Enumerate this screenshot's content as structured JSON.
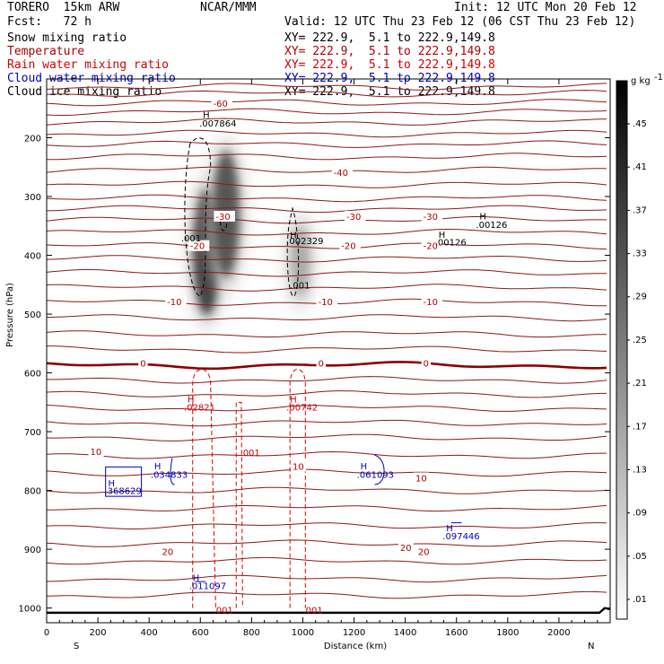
{
  "header": {
    "model": "TORERO  15km ARW",
    "center": "NCAR/MMM",
    "init": "Init: 12 UTC Mon 20 Feb 12",
    "fcst": "Fcst:   72 h",
    "valid": "Valid: 12 UTC Thu 23 Feb 12 (06 CST Thu 23 Feb 12)"
  },
  "legend": [
    {
      "name": "Snow mixing ratio",
      "xy": "XY= 222.9,  5.1 to 222.9,149.8",
      "color": "#000000"
    },
    {
      "name": "Temperature",
      "xy": "XY= 222.9,  5.1 to 222.9,149.8",
      "color": "#b00000"
    },
    {
      "name": "Rain water mixing ratio",
      "xy": "XY= 222.9,  5.1 to 222.9,149.8",
      "color": "#d00000"
    },
    {
      "name": "Cloud water mixing ratio",
      "xy": "XY= 222.9,  5.1 to 222.9,149.8",
      "color": "#0000c0"
    },
    {
      "name": "Cloud ice mixing ratio",
      "xy": "XY= 222.9,  5.1 to 222.9,149.8",
      "color": "#000000"
    }
  ],
  "chart_data": {
    "type": "cross-section contour",
    "xlabel": "Distance (km)",
    "ylabel": "Pressure (hPa)",
    "x_ticks": [
      0,
      200,
      400,
      600,
      800,
      1000,
      1200,
      1400,
      1600,
      1800,
      2000
    ],
    "xlim": [
      0,
      2200
    ],
    "y_ticks": [
      200,
      300,
      400,
      500,
      600,
      700,
      800,
      900,
      1000
    ],
    "ylim": [
      1025,
      100
    ],
    "x_ends": {
      "left": "S",
      "right": "N"
    },
    "colorbar": {
      "unit": "g kg",
      "unit_exp": "-1",
      "labels": [
        ".45",
        ".41",
        ".37",
        ".33",
        ".29",
        ".25",
        ".21",
        ".17",
        ".13",
        ".09",
        ".05",
        ".01"
      ]
    },
    "temperature_isotherms": [
      {
        "value": -60,
        "label": "-60",
        "label_x": 650,
        "label_p": 143
      },
      {
        "value": -40,
        "label": "-40",
        "label_x": 1120,
        "label_p": 260
      },
      {
        "value": -30,
        "label": "-30",
        "label_x": 660,
        "label_p": 335
      },
      {
        "value": -30,
        "label": "-30",
        "label_x": 1170,
        "label_p": 335
      },
      {
        "value": -30,
        "label": "-30",
        "label_x": 1470,
        "label_p": 335
      },
      {
        "value": -20,
        "label": "-20",
        "label_x": 560,
        "label_p": 385
      },
      {
        "value": -20,
        "label": "-20",
        "label_x": 1150,
        "label_p": 385
      },
      {
        "value": -20,
        "label": "-20",
        "label_x": 1470,
        "label_p": 385
      },
      {
        "value": -10,
        "label": "-10",
        "label_x": 470,
        "label_p": 480
      },
      {
        "value": -10,
        "label": "-10",
        "label_x": 1060,
        "label_p": 480
      },
      {
        "value": -10,
        "label": "-10",
        "label_x": 1470,
        "label_p": 480
      },
      {
        "value": 0,
        "label": "0",
        "label_x": 365,
        "label_p": 585
      },
      {
        "value": 0,
        "label": "0",
        "label_x": 1060,
        "label_p": 585
      },
      {
        "value": 0,
        "label": "0",
        "label_x": 1470,
        "label_p": 585
      },
      {
        "value": 10,
        "label": "10",
        "label_x": 170,
        "label_p": 735
      },
      {
        "value": 10,
        "label": "10",
        "label_x": 960,
        "label_p": 760
      },
      {
        "value": 10,
        "label": "10",
        "label_x": 1440,
        "label_p": 780
      },
      {
        "value": 20,
        "label": "20",
        "label_x": 450,
        "label_p": 905
      },
      {
        "value": 20,
        "label": "20",
        "label_x": 1380,
        "label_p": 898
      },
      {
        "value": 20,
        "label": "20",
        "label_x": 1450,
        "label_p": 905
      }
    ],
    "isotherm_levels_hPa": [
      113,
      125,
      140,
      156,
      173,
      193,
      211,
      232,
      255,
      280,
      303,
      321,
      340,
      361,
      384,
      406,
      430,
      455,
      480,
      506,
      534,
      560,
      587,
      612,
      636,
      660,
      685,
      710,
      740,
      770,
      800,
      830,
      860,
      890,
      920,
      950,
      978
    ],
    "maxima_labels": [
      {
        "field": "snow",
        "value": ".007864",
        "x": 610,
        "p": 175,
        "h_p": 160
      },
      {
        "field": "snow",
        "value": ".002329",
        "x": 950,
        "p": 375,
        "h_p": 365
      },
      {
        "field": "snow",
        "value": ".00126",
        "x": 1690,
        "p": 347,
        "h_p": 333
      },
      {
        "field": "snow",
        "value": ".00126",
        "x": 1530,
        "p": 377,
        "h_p": 364
      },
      {
        "field": "rain",
        "value": ".02821",
        "x": 550,
        "p": 658,
        "h_p": 644
      },
      {
        "field": "rain",
        "value": ".00742",
        "x": 950,
        "p": 658,
        "h_p": 644
      },
      {
        "field": "cloud_water",
        "value": ".034833",
        "x": 420,
        "p": 772,
        "h_p": 758
      },
      {
        "field": "cloud_water",
        "value": ".061093",
        "x": 1225,
        "p": 772,
        "h_p": 758
      },
      {
        "field": "cloud_water",
        "value": ".368629",
        "x": 240,
        "p": 800,
        "h_p": 787
      },
      {
        "field": "cloud_water",
        "value": ".097446",
        "x": 1560,
        "p": 877,
        "h_p": 863
      },
      {
        "field": "cloud_water",
        "value": ".011097",
        "x": 570,
        "p": 962,
        "h_p": 948
      }
    ],
    "contour_labels": [
      {
        "field": "snow",
        "value": ".001",
        "x": 525,
        "p": 370
      },
      {
        "field": "snow",
        "value": ".001",
        "x": 950,
        "p": 450
      },
      {
        "field": "rain",
        "value": ".001",
        "x": 755,
        "p": 735
      },
      {
        "field": "rain",
        "value": ".001",
        "x": 650,
        "p": 1003
      },
      {
        "field": "rain",
        "value": ".001",
        "x": 1000,
        "p": 1003
      }
    ],
    "snow_shading": [
      {
        "center_x": 625,
        "center_p": 395,
        "peak": 0.45
      },
      {
        "center_x": 700,
        "center_p": 330,
        "peak": 0.4
      },
      {
        "center_x": 990,
        "center_p": 410,
        "peak": 0.2
      }
    ]
  }
}
